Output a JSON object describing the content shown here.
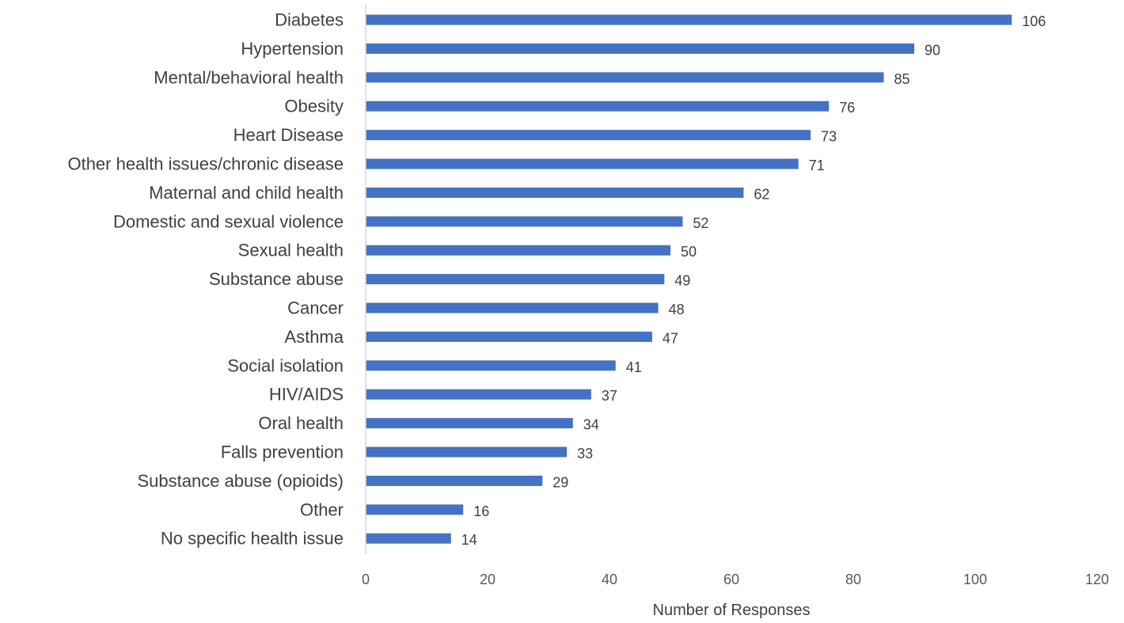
{
  "chart_data": {
    "type": "bar",
    "orientation": "horizontal",
    "title": "",
    "xlabel": "Number of Responses",
    "ylabel": "",
    "xlim": [
      0,
      120
    ],
    "xticks": [
      0,
      20,
      40,
      60,
      80,
      100,
      120
    ],
    "grid": false,
    "legend": "none",
    "bar_color": "#4472C4",
    "categories": [
      "Diabetes",
      "Hypertension",
      "Mental/behavioral health",
      "Obesity",
      "Heart Disease",
      "Other health issues/chronic disease",
      "Maternal and child health",
      "Domestic and sexual violence ",
      "Sexual health",
      "Substance abuse ",
      "Cancer",
      "Asthma",
      "Social isolation",
      "HIV/AIDS",
      "Oral health",
      "Falls prevention",
      "Substance abuse (opioids)",
      "Other ",
      "No specific health issue"
    ],
    "values": [
      106,
      90,
      85,
      76,
      73,
      71,
      62,
      52,
      50,
      49,
      48,
      47,
      41,
      37,
      34,
      33,
      29,
      16,
      14
    ]
  }
}
